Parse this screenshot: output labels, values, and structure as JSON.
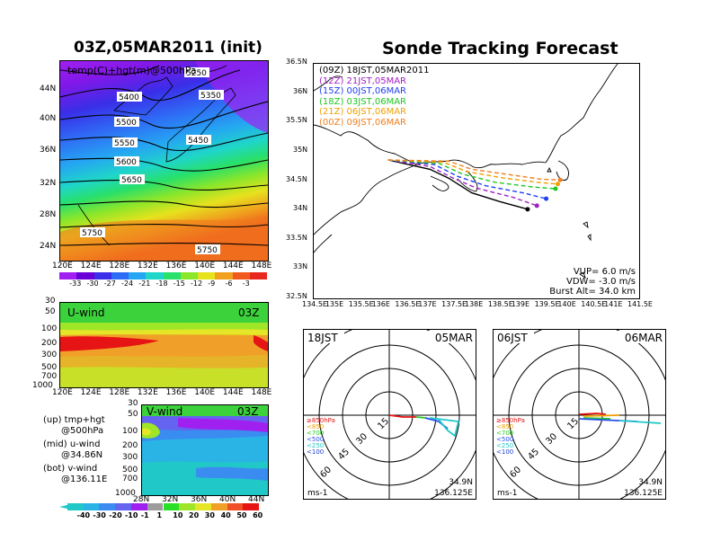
{
  "left_title": "03Z,05MAR2011 (init)",
  "right_title": "Sonde Tracking Forecast",
  "top_map": {
    "label": "temp(C)+hgt(m)@500hPa",
    "lat_ticks": [
      "44N",
      "40N",
      "36N",
      "32N",
      "28N",
      "24N"
    ],
    "lon_ticks": [
      "120E",
      "124E",
      "128E",
      "132E",
      "136E",
      "140E",
      "144E",
      "148E"
    ],
    "contour_labels": [
      "5250",
      "5400",
      "5350",
      "5500",
      "5450",
      "5550",
      "5600",
      "5650",
      "5750",
      "5750"
    ],
    "colorbar_ticks": [
      "-33",
      "-30",
      "-27",
      "-24",
      "-21",
      "-18",
      "-15",
      "-12",
      "-9",
      "-6",
      "-3"
    ],
    "colorbar_colors": [
      "#a020f0",
      "#6a00d8",
      "#3a2ee8",
      "#2f6cf5",
      "#25a6f2",
      "#1fd6c8",
      "#28e06a",
      "#8ce62a",
      "#e6e21e",
      "#f0a11e",
      "#f05a1e",
      "#e8281e"
    ]
  },
  "u_panel": {
    "label": "U-wind",
    "time": "03Z",
    "y_ticks": [
      "30",
      "50",
      "100",
      "200",
      "300",
      "500",
      "700",
      "1000"
    ],
    "x_ticks": [
      "120E",
      "124E",
      "128E",
      "132E",
      "136E",
      "140E",
      "144E",
      "148E"
    ]
  },
  "v_panel": {
    "label": "V-wind",
    "time": "03Z",
    "y_ticks": [
      "30",
      "50",
      "100",
      "200",
      "300",
      "500",
      "700",
      "1000"
    ],
    "x_ticks": [
      "28N",
      "32N",
      "36N",
      "40N",
      "44N"
    ]
  },
  "legend_notes": [
    {
      "line1": "(up) tmp+hgt",
      "line2": "@500hPa"
    },
    {
      "line1": "(mid) u-wind",
      "line2": "@34.86N"
    },
    {
      "line1": "(bot) v-wind",
      "line2": "@136.11E"
    }
  ],
  "wind_colorbar": {
    "ticks": [
      "-40",
      "-30",
      "-20",
      "-10",
      "-1",
      "1",
      "10",
      "20",
      "30",
      "40",
      "50",
      "60"
    ],
    "colors": [
      "#20c8c8",
      "#2ab4e6",
      "#3a8cf0",
      "#6464f0",
      "#a020f0",
      "#9c9c9c",
      "#28e028",
      "#a0e628",
      "#e6e628",
      "#f0a028",
      "#f05028",
      "#e61414"
    ]
  },
  "track_map": {
    "lat_ticks": [
      "36.5N",
      "36N",
      "35.5N",
      "35N",
      "34.5N",
      "34N",
      "33.5N",
      "33N",
      "32.5N"
    ],
    "lon_ticks": [
      "134.5E",
      "135E",
      "135.5E",
      "136E",
      "136.5E",
      "137E",
      "137.5E",
      "138E",
      "138.5E",
      "139E",
      "139.5E",
      "140E",
      "140.5E",
      "141E",
      "141.5E"
    ],
    "legend": [
      {
        "label": "(09Z)  18JST,05MAR2011",
        "color": "#000000"
      },
      {
        "label": "(12Z)  21JST,05MAR",
        "color": "#a020c0"
      },
      {
        "label": "(15Z)  00JST,06MAR",
        "color": "#2040f0"
      },
      {
        "label": "(18Z)  03JST,06MAR",
        "color": "#20c820"
      },
      {
        "label": "(21Z)  06JST,06MAR",
        "color": "#f0a000"
      },
      {
        "label": "(00Z)  09JST,06MAR",
        "color": "#f08020"
      }
    ],
    "params": [
      "VUP=  6.0  m/s",
      "VDW= -3.0  m/s",
      "Burst Alt=  34.0  km"
    ]
  },
  "hodo_left": {
    "left_label": "18JST",
    "right_label": "05MAR",
    "ring_labels": [
      "15",
      "30",
      "45",
      "60"
    ],
    "level_legend": [
      {
        "label": "≥850hPa",
        "color": "#e61414"
      },
      {
        "label": "<850",
        "color": "#f0a000"
      },
      {
        "label": "<700",
        "color": "#28c828"
      },
      {
        "label": "<500",
        "color": "#2850f0"
      },
      {
        "label": "<250",
        "color": "#20c8c8"
      },
      {
        "label": "<100",
        "color": "#2040d0"
      }
    ],
    "units": "ms-1",
    "lat": "34.9N",
    "lon": "136.125E"
  },
  "hodo_right": {
    "left_label": "06JST",
    "right_label": "06MAR",
    "ring_labels": [
      "15",
      "30",
      "45",
      "60"
    ],
    "level_legend": [
      {
        "label": "≥850hPa",
        "color": "#e61414"
      },
      {
        "label": "<850",
        "color": "#f0a000"
      },
      {
        "label": "<700",
        "color": "#28c828"
      },
      {
        "label": "<500",
        "color": "#2850f0"
      },
      {
        "label": "<250",
        "color": "#20c8c8"
      },
      {
        "label": "<100",
        "color": "#2040d0"
      }
    ],
    "units": "ms-1",
    "lat": "34.9N",
    "lon": "136.125E"
  },
  "chart_data": [
    {
      "type": "line",
      "title": "Sonde Tracking Forecast",
      "xlim": [
        134.5,
        141.5
      ],
      "ylim": [
        32.5,
        36.5
      ],
      "series": [
        {
          "name": "(09Z)  18JST,05MAR2011",
          "x": [
            136.1,
            137.0,
            137.4,
            137.9,
            138.5,
            139.1
          ],
          "y": [
            34.86,
            34.7,
            34.55,
            34.3,
            34.15,
            34.02
          ]
        },
        {
          "name": "(12Z)  21JST,05MAR",
          "x": [
            136.1,
            137.0,
            137.5,
            138.0,
            138.8,
            139.3
          ],
          "y": [
            34.86,
            34.75,
            34.55,
            34.38,
            34.22,
            34.08
          ]
        },
        {
          "name": "(15Z)  00JST,06MAR",
          "x": [
            136.1,
            137.1,
            137.6,
            138.2,
            139.0,
            139.5
          ],
          "y": [
            34.86,
            34.78,
            34.58,
            34.42,
            34.3,
            34.2
          ]
        },
        {
          "name": "(18Z)  03JST,06MAR",
          "x": [
            136.1,
            137.2,
            137.7,
            138.4,
            139.2,
            139.7
          ],
          "y": [
            34.86,
            34.8,
            34.62,
            34.48,
            34.4,
            34.37
          ]
        },
        {
          "name": "(21Z)  06JST,06MAR",
          "x": [
            136.1,
            137.3,
            137.8,
            138.6,
            139.3,
            139.75
          ],
          "y": [
            34.86,
            34.82,
            34.66,
            34.55,
            34.48,
            34.45
          ]
        },
        {
          "name": "(00Z)  09JST,06MAR",
          "x": [
            136.1,
            137.4,
            137.9,
            138.8,
            139.4,
            139.8
          ],
          "y": [
            34.86,
            34.84,
            34.7,
            34.6,
            34.53,
            34.52
          ]
        }
      ]
    }
  ]
}
